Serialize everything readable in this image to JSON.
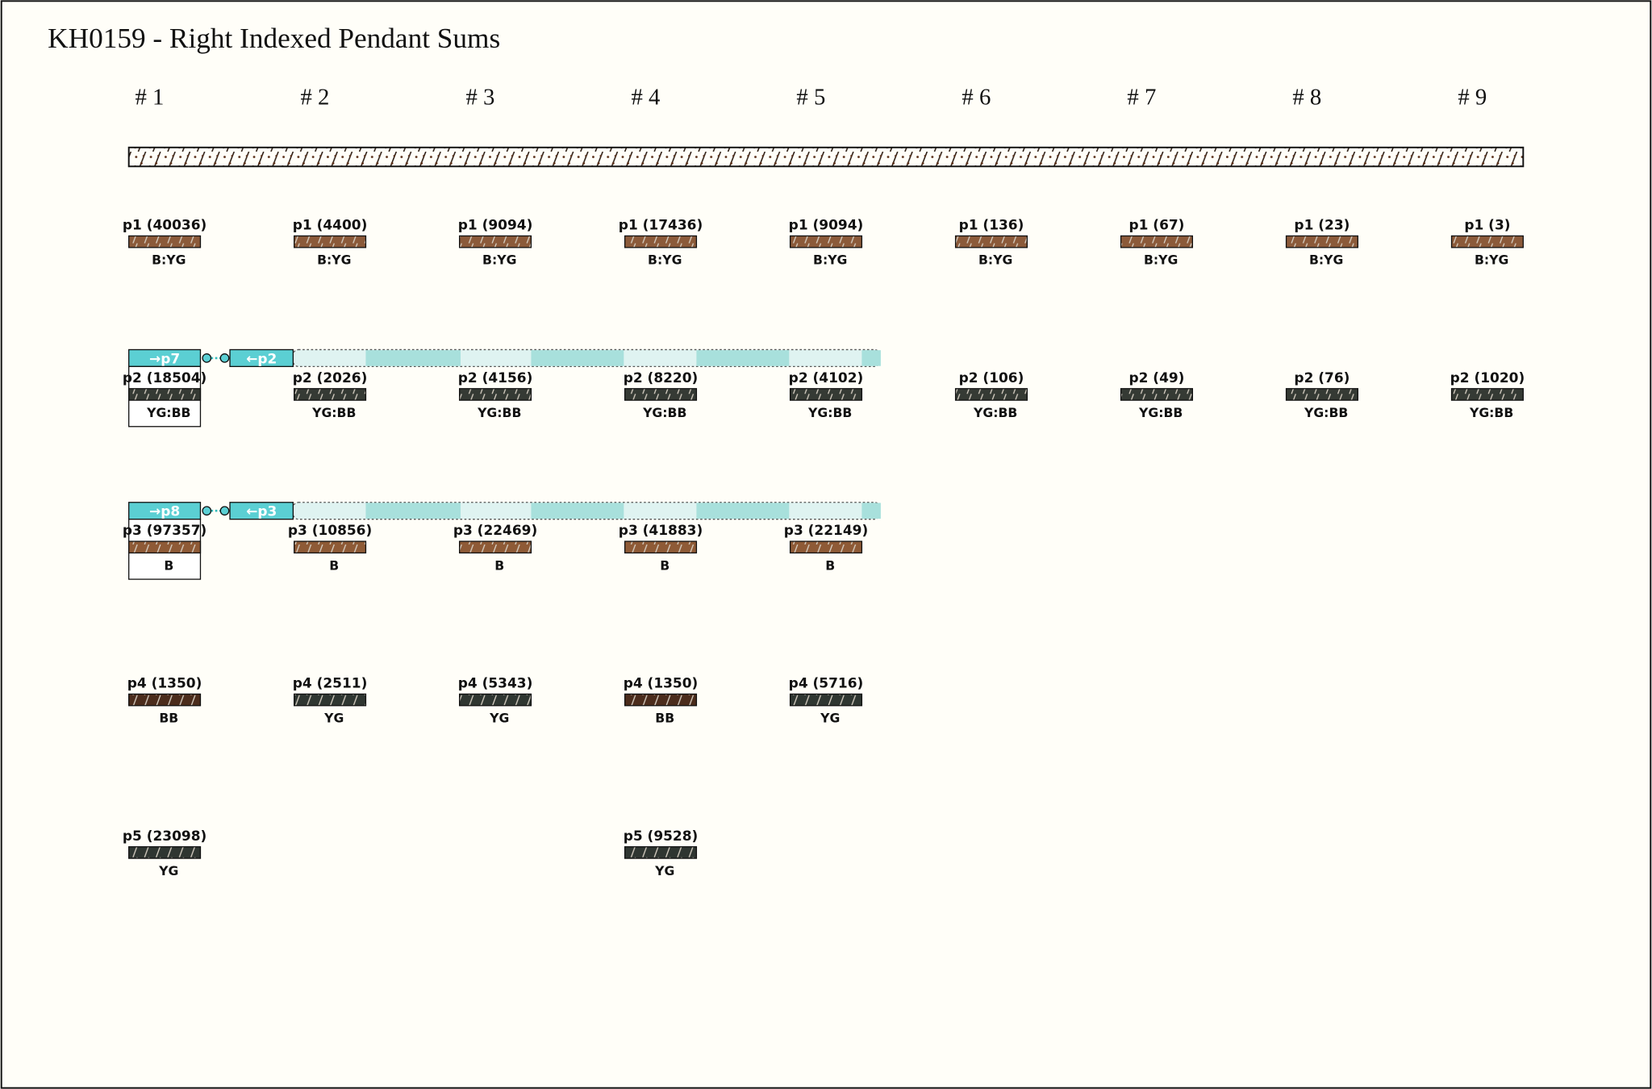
{
  "title": "KH0159 - Right Indexed Pendant Sums",
  "groups": [
    {
      "header": "# 1",
      "pendants": [
        {
          "label": "p1 (40036)",
          "color": "B:YG"
        },
        {
          "label": "p2 (18504)",
          "color": "YG:BB",
          "links": [
            "→p7",
            "←p2"
          ]
        },
        {
          "label": "p3 (97357)",
          "color": "B",
          "links": [
            "→p8",
            "←p3"
          ]
        },
        {
          "label": "p4 (1350)",
          "color": "BB"
        },
        {
          "label": "p5 (23098)",
          "color": "YG"
        }
      ]
    },
    {
      "header": "# 2",
      "pendants": [
        {
          "label": "p1 (4400)",
          "color": "B:YG"
        },
        {
          "label": "p2 (2026)",
          "color": "YG:BB"
        },
        {
          "label": "p3 (10856)",
          "color": "B"
        },
        {
          "label": "p4 (2511)",
          "color": "YG"
        }
      ]
    },
    {
      "header": "# 3",
      "pendants": [
        {
          "label": "p1 (9094)",
          "color": "B:YG"
        },
        {
          "label": "p2 (4156)",
          "color": "YG:BB"
        },
        {
          "label": "p3 (22469)",
          "color": "B"
        },
        {
          "label": "p4 (5343)",
          "color": "YG"
        }
      ]
    },
    {
      "header": "# 4",
      "pendants": [
        {
          "label": "p1 (17436)",
          "color": "B:YG"
        },
        {
          "label": "p2 (8220)",
          "color": "YG:BB"
        },
        {
          "label": "p3 (41883)",
          "color": "B"
        },
        {
          "label": "p4 (1350)",
          "color": "BB"
        },
        {
          "label": "p5 (9528)",
          "color": "YG"
        }
      ]
    },
    {
      "header": "# 5",
      "pendants": [
        {
          "label": "p1 (9094)",
          "color": "B:YG"
        },
        {
          "label": "p2 (4102)",
          "color": "YG:BB"
        },
        {
          "label": "p3 (22149)",
          "color": "B"
        },
        {
          "label": "p4 (5716)",
          "color": "YG"
        }
      ]
    },
    {
      "header": "# 6",
      "pendants": [
        {
          "label": "p1 (136)",
          "color": "B:YG"
        },
        {
          "label": "p2 (106)",
          "color": "YG:BB"
        }
      ]
    },
    {
      "header": "# 7",
      "pendants": [
        {
          "label": "p1 (67)",
          "color": "B:YG"
        },
        {
          "label": "p2 (49)",
          "color": "YG:BB"
        }
      ]
    },
    {
      "header": "# 8",
      "pendants": [
        {
          "label": "p1 (23)",
          "color": "B:YG"
        },
        {
          "label": "p2 (76)",
          "color": "YG:BB"
        }
      ]
    },
    {
      "header": "# 9",
      "pendants": [
        {
          "label": "p1 (3)",
          "color": "B:YG"
        },
        {
          "label": "p2 (1020)",
          "color": "YG:BB"
        }
      ]
    }
  ]
}
